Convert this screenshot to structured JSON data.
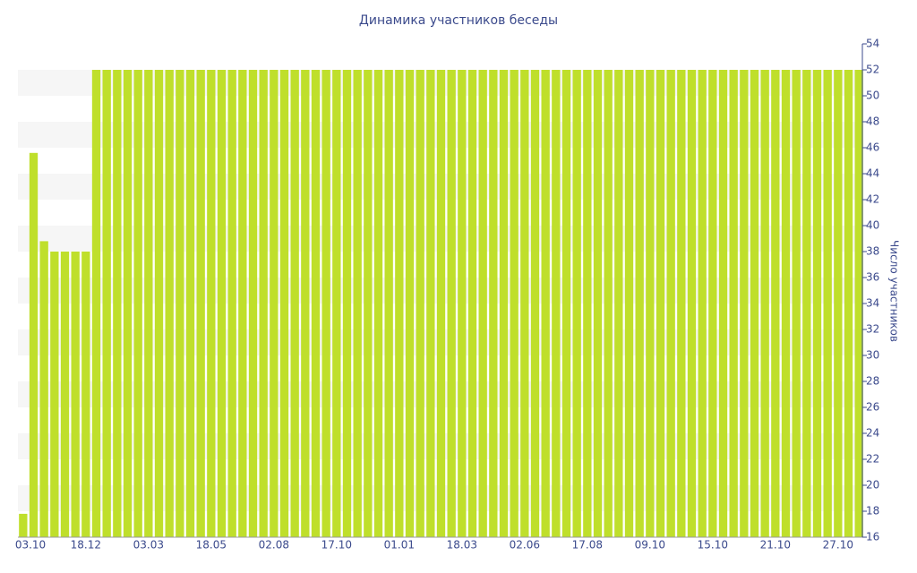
{
  "chart_data": {
    "type": "bar",
    "title": "Динамика участников беседы",
    "y_axis_label": "Число участников",
    "categories": [
      "03.10",
      null,
      null,
      null,
      null,
      null,
      "18.12",
      null,
      null,
      null,
      null,
      null,
      "03.03",
      null,
      null,
      null,
      null,
      null,
      "18.05",
      null,
      null,
      null,
      null,
      null,
      "02.08",
      null,
      null,
      null,
      null,
      null,
      "17.10",
      null,
      null,
      null,
      null,
      null,
      "01.01",
      null,
      null,
      null,
      null,
      null,
      "18.03",
      null,
      null,
      null,
      null,
      null,
      "02.06",
      null,
      null,
      null,
      null,
      null,
      "17.08",
      null,
      null,
      null,
      null,
      null,
      "09.10",
      null,
      null,
      null,
      null,
      null,
      "15.10",
      null,
      null,
      null,
      null,
      null,
      "21.10",
      null,
      null,
      null,
      null,
      null,
      "27.10",
      null,
      null
    ],
    "values": [
      17.8,
      45.6,
      38.8,
      38,
      38,
      38,
      38,
      52,
      52,
      52,
      52,
      52,
      52,
      52,
      52,
      52,
      52,
      52,
      52,
      52,
      52,
      52,
      52,
      52,
      52,
      52,
      52,
      52,
      52,
      52,
      52,
      52,
      52,
      52,
      52,
      52,
      52,
      52,
      52,
      52,
      52,
      52,
      52,
      52,
      52,
      52,
      52,
      52,
      52,
      52,
      52,
      52,
      52,
      52,
      52,
      52,
      52,
      52,
      52,
      52,
      52,
      52,
      52,
      52,
      52,
      52,
      52,
      52,
      52,
      52,
      52,
      52,
      52,
      52,
      52,
      52,
      52,
      52,
      52,
      52,
      52
    ],
    "color": "#bfdf2b",
    "band_color": "#f6f6f6",
    "ylim": [
      16,
      54
    ],
    "yticks": [
      16,
      18,
      20,
      22,
      24,
      26,
      28,
      30,
      32,
      34,
      36,
      38,
      40,
      42,
      44,
      46,
      48,
      50,
      52,
      54
    ],
    "y_axis_side": "right",
    "grid_bands": true
  }
}
